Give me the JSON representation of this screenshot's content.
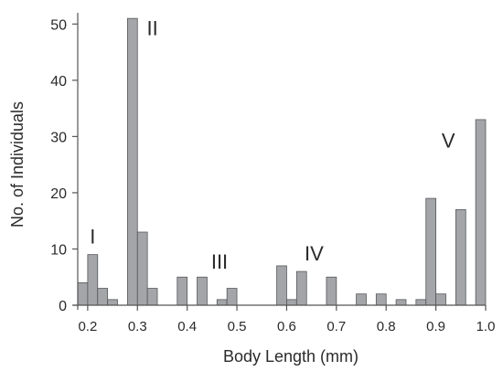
{
  "chart_data": {
    "type": "bar",
    "title": "",
    "xlabel": "Body Length (mm)",
    "ylabel": "No. of Individuals",
    "xlim": [
      0.18,
      1.0
    ],
    "ylim": [
      0,
      52
    ],
    "x_ticks": [
      "0.2",
      "0.3",
      "0.4",
      "0.5",
      "0.6",
      "0.7",
      "0.8",
      "0.9",
      "1.0"
    ],
    "y_ticks": [
      "0",
      "10",
      "20",
      "30",
      "40",
      "50"
    ],
    "bin_width": 0.02,
    "grid": false,
    "legend": "none",
    "bar_color": "#a3a5a8",
    "bar_edge_color": "#55575a",
    "bars": [
      {
        "x": 0.2,
        "value": 4
      },
      {
        "x": 0.22,
        "value": 9
      },
      {
        "x": 0.24,
        "value": 3
      },
      {
        "x": 0.26,
        "value": 1
      },
      {
        "x": 0.3,
        "value": 51
      },
      {
        "x": 0.32,
        "value": 13
      },
      {
        "x": 0.34,
        "value": 3
      },
      {
        "x": 0.4,
        "value": 5
      },
      {
        "x": 0.44,
        "value": 5
      },
      {
        "x": 0.48,
        "value": 1
      },
      {
        "x": 0.5,
        "value": 3
      },
      {
        "x": 0.6,
        "value": 7
      },
      {
        "x": 0.62,
        "value": 1
      },
      {
        "x": 0.64,
        "value": 6
      },
      {
        "x": 0.7,
        "value": 5
      },
      {
        "x": 0.76,
        "value": 2
      },
      {
        "x": 0.8,
        "value": 2
      },
      {
        "x": 0.84,
        "value": 1
      },
      {
        "x": 0.88,
        "value": 1
      },
      {
        "x": 0.9,
        "value": 19
      },
      {
        "x": 0.92,
        "value": 2
      },
      {
        "x": 0.96,
        "value": 17
      },
      {
        "x": 1.0,
        "value": 33
      }
    ],
    "annotations": [
      {
        "text": "I",
        "x": 0.21,
        "y": 11
      },
      {
        "text": "II",
        "x": 0.33,
        "y": 48
      },
      {
        "text": "III",
        "x": 0.465,
        "y": 6.5
      },
      {
        "text": "IV",
        "x": 0.655,
        "y": 8
      },
      {
        "text": "V",
        "x": 0.925,
        "y": 28
      }
    ]
  }
}
